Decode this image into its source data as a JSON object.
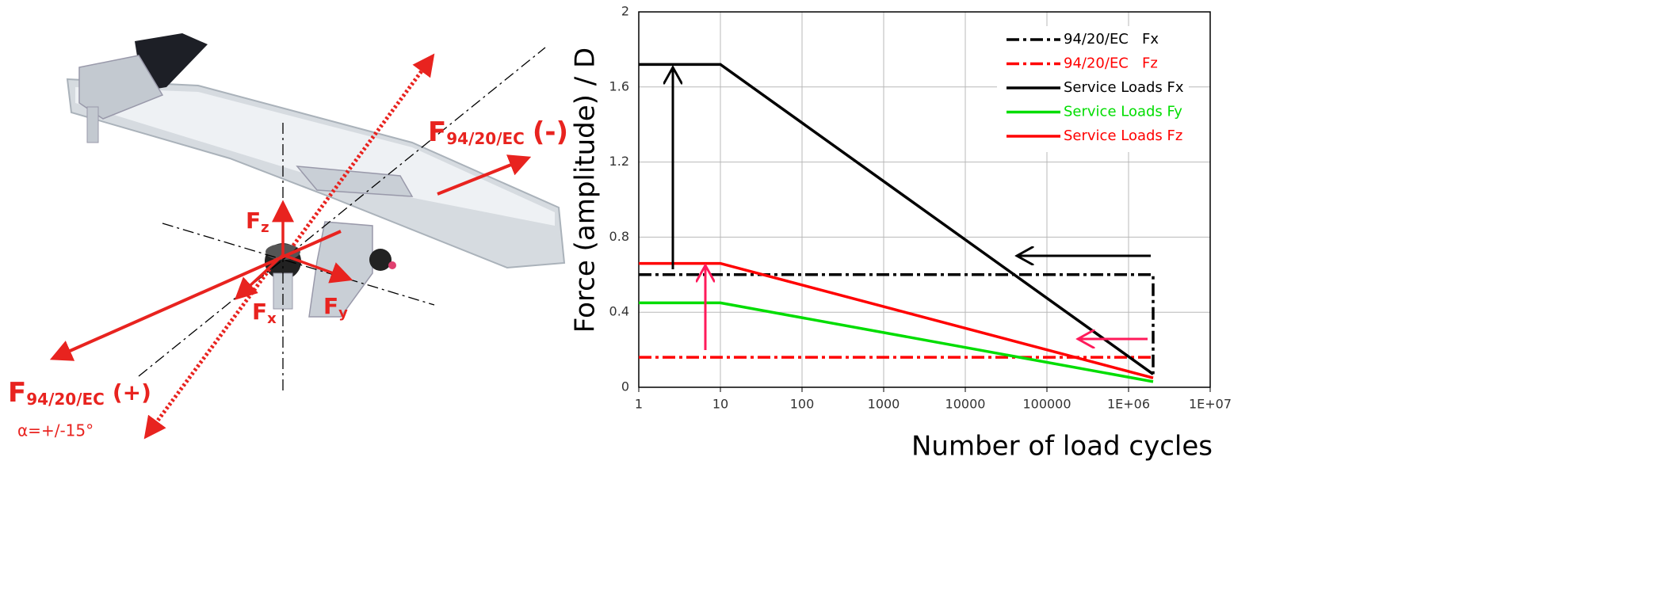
{
  "diagram": {
    "force_minus": {
      "symbol": "F",
      "subscript": "94/20/EC",
      "sign": "(-)"
    },
    "force_plus": {
      "symbol": "F",
      "subscript": "94/20/EC",
      "sign": "(+)"
    },
    "fz": {
      "symbol": "F",
      "subscript": "z"
    },
    "fx": {
      "symbol": "F",
      "subscript": "x"
    },
    "fy": {
      "symbol": "F",
      "subscript": "y"
    },
    "angle": "α=+/-15°"
  },
  "chart_data": {
    "type": "line",
    "ylabel": "Force (amplitude) / D",
    "xlabel": "Number of load cycles",
    "xscale": "log",
    "xlim": [
      1,
      10000000
    ],
    "xticks": [
      1,
      10,
      100,
      1000,
      10000,
      100000,
      {
        "value": 1000000,
        "label": "1E+06"
      },
      {
        "value": 10000000,
        "label": "1E+07"
      }
    ],
    "ylim": [
      0,
      2
    ],
    "yticks": [
      0,
      0.4,
      0.8,
      1.2,
      1.6,
      2
    ],
    "grid": true,
    "legend": "upper right",
    "series": [
      {
        "name": "94/20/EC   Fx",
        "color": "#000000",
        "dash": "dashdot",
        "x": [
          1,
          2000000,
          2000000
        ],
        "values": [
          0.6,
          0.6,
          0.07
        ]
      },
      {
        "name": "94/20/EC   Fz",
        "color": "#ff0000",
        "dash": "dashdot",
        "x": [
          1,
          2000000
        ],
        "values": [
          0.16,
          0.16
        ]
      },
      {
        "name": "Service Loads Fx",
        "color": "#000000",
        "dash": "solid",
        "x": [
          1,
          10,
          2000000
        ],
        "values": [
          1.72,
          1.72,
          0.07
        ]
      },
      {
        "name": "Service Loads Fy",
        "color": "#00dd00",
        "dash": "solid",
        "x": [
          1,
          10,
          2000000
        ],
        "values": [
          0.45,
          0.45,
          0.03
        ]
      },
      {
        "name": "Service Loads Fz",
        "color": "#ff0000",
        "dash": "solid",
        "x": [
          1,
          10,
          2000000
        ],
        "values": [
          0.66,
          0.66,
          0.05
        ]
      }
    ]
  }
}
